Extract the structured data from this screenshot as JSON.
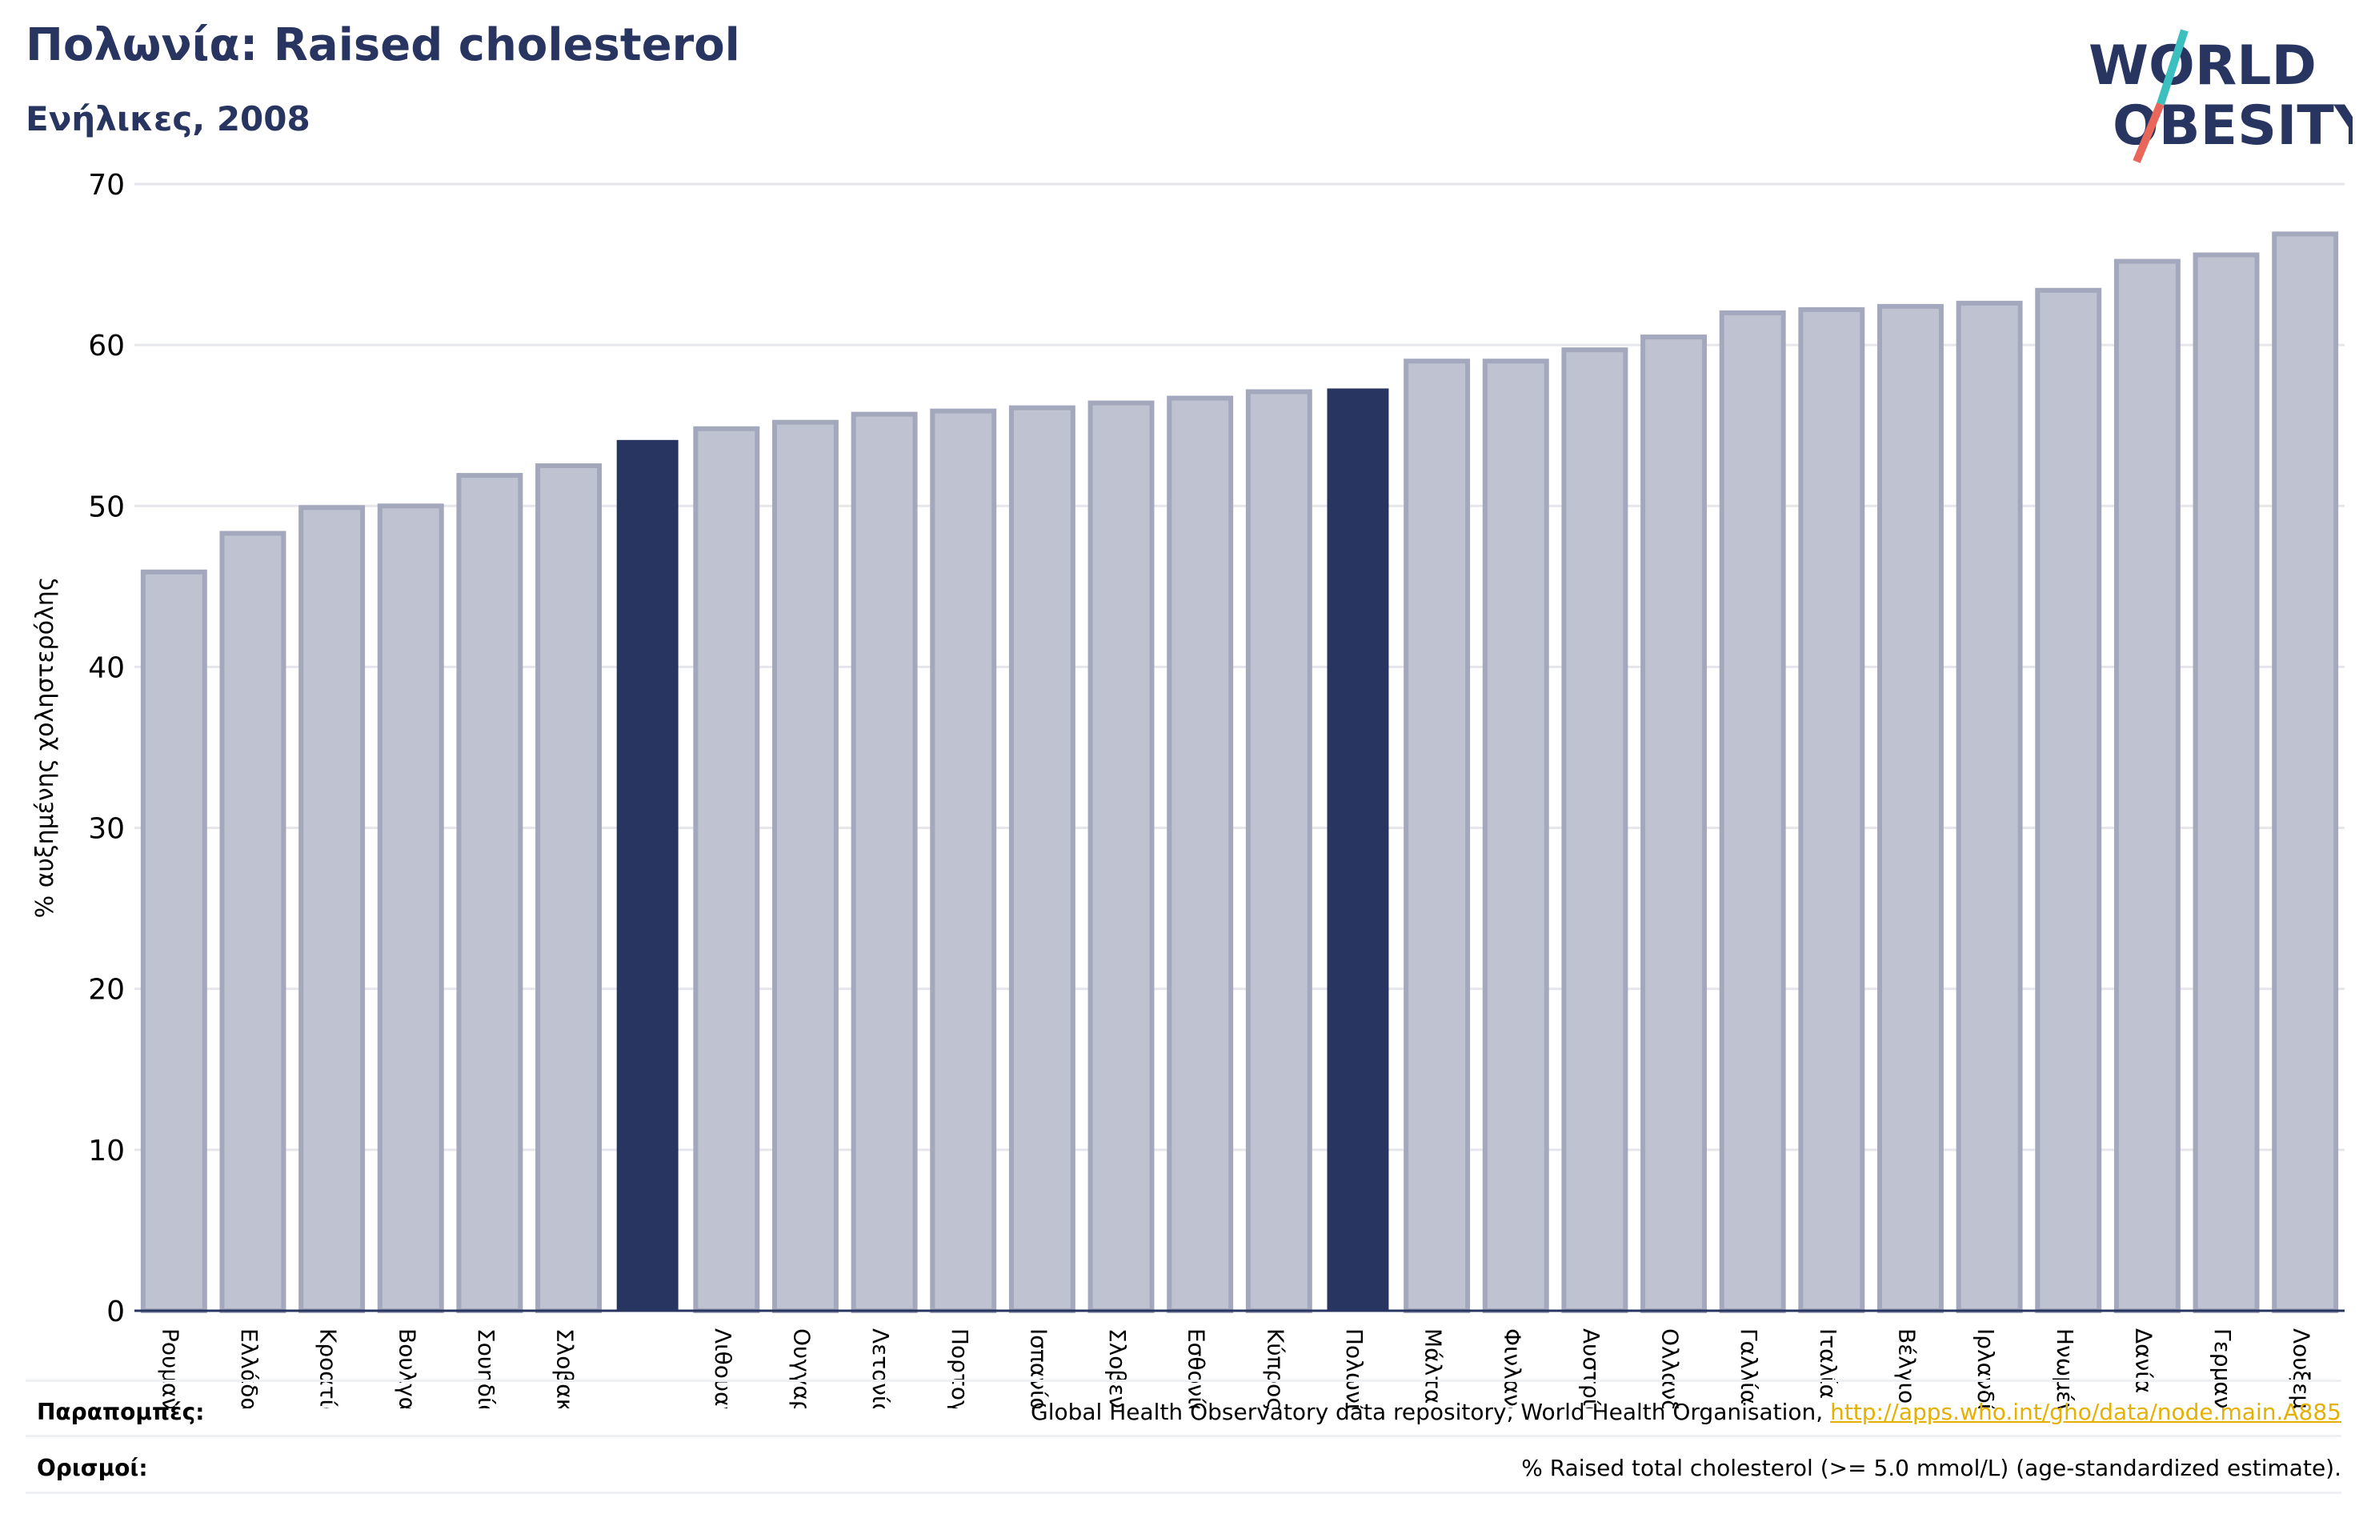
{
  "header": {
    "title": "Πολωνία: Raised cholesterol",
    "subtitle": "Ενήλικες, 2008"
  },
  "logo": {
    "line1": "WORLD",
    "line2": "OBESITY",
    "accent_teal": "#3bbfbf",
    "accent_red": "#e8665a"
  },
  "footer": {
    "sources_label": "Παραπομπές:",
    "sources_text": "Global Health Observatory data repository, World Health Organisation, ",
    "sources_link": "http://apps.who.int/gho/data/node.main.A885",
    "definitions_label": "Ορισμοί:",
    "definitions_text": "% Raised total cholesterol (>= 5.0 mmol/L) (age-standardized estimate)."
  },
  "colors": {
    "bar": "#bfc2d0",
    "bar_edge": "#a4a8bd",
    "highlight": "#283561",
    "grid": "#e4e6ec",
    "axis": "#283561"
  },
  "chart_data": {
    "type": "bar",
    "ylabel": "% αυξημένης χοληστερόλης",
    "ylim": [
      0,
      70
    ],
    "yticks": [
      0,
      10,
      20,
      30,
      40,
      50,
      60,
      70
    ],
    "grid": true,
    "categories": [
      "Ρουμανία",
      "Ελλάδα",
      "Κροατία",
      "Βουλγαρία",
      "Σουηδία",
      "Σλοβακία",
      "",
      "Λιθουανία",
      "Ουγγαρία",
      "Λετονία",
      "Πορτογαλία",
      "Ισπανία",
      "Σλοβενία",
      "Εσθονία",
      "Κύπρος",
      "Πολωνία",
      "Μάλτα",
      "Φινλανδία",
      "Αυστρία",
      "Ολλανδία",
      "Γαλλία",
      "Ιταλία",
      "Βέλγιο",
      "Ιρλανδία",
      "Ηνωμένο Βασίλειο",
      "Δανία",
      "Γερμανία",
      "Λουξεμβούργο"
    ],
    "values": [
      45.9,
      48.3,
      49.9,
      50.0,
      51.9,
      52.5,
      54.1,
      54.8,
      55.2,
      55.7,
      55.9,
      56.1,
      56.4,
      56.7,
      57.1,
      57.3,
      59.0,
      59.0,
      59.7,
      60.5,
      62.0,
      62.2,
      62.4,
      62.6,
      63.4,
      65.2,
      65.6,
      66.9
    ],
    "highlighted": [
      6,
      15
    ]
  }
}
